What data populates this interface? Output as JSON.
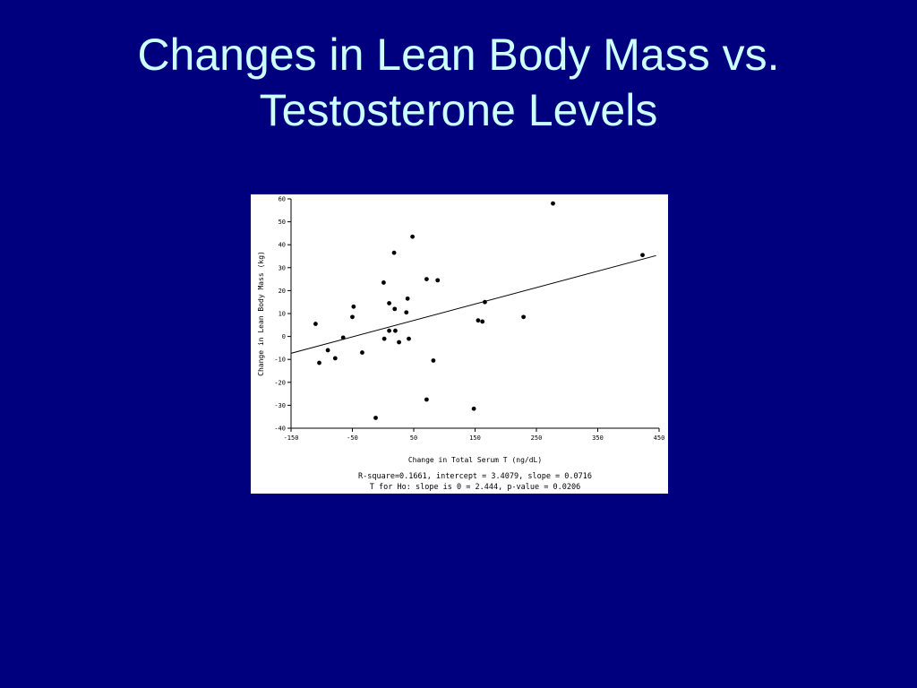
{
  "slide": {
    "title_line1": "Changes in Lean Body Mass vs.",
    "title_line2": "Testosterone Levels"
  },
  "colors": {
    "background": "#00007f",
    "title": "#ccffff",
    "plot_background": "#ffffff",
    "marks": "#000000"
  },
  "chart_data": {
    "type": "scatter",
    "title": "",
    "xlabel": "Change in Total Serum T (ng/dL)",
    "ylabel": "Change in Lean Body Mass (kg)",
    "xlim": [
      -150,
      450
    ],
    "ylim": [
      -40,
      60
    ],
    "xticks": [
      -150,
      -50,
      50,
      150,
      250,
      350,
      450
    ],
    "yticks": [
      -40,
      -30,
      -20,
      -10,
      0,
      10,
      20,
      30,
      40,
      50,
      60
    ],
    "grid": false,
    "legend": "none",
    "series": [
      {
        "points": [
          {
            "x": -110,
            "y": 5.5
          },
          {
            "x": -104,
            "y": -11.5
          },
          {
            "x": -90,
            "y": -6
          },
          {
            "x": -78,
            "y": -9.5
          },
          {
            "x": -65,
            "y": -0.5
          },
          {
            "x": -50,
            "y": 8.5
          },
          {
            "x": -48,
            "y": 13
          },
          {
            "x": -34,
            "y": -7
          },
          {
            "x": -12,
            "y": -35.5
          },
          {
            "x": 1,
            "y": 23.5
          },
          {
            "x": 2,
            "y": -1
          },
          {
            "x": 10,
            "y": 14.5
          },
          {
            "x": 10,
            "y": 2.5
          },
          {
            "x": 18,
            "y": 36.5
          },
          {
            "x": 19,
            "y": 12
          },
          {
            "x": 20,
            "y": 2.5
          },
          {
            "x": 26,
            "y": -2.5
          },
          {
            "x": 38,
            "y": 10.5
          },
          {
            "x": 40,
            "y": 16.5
          },
          {
            "x": 42,
            "y": -1
          },
          {
            "x": 48,
            "y": 43.5
          },
          {
            "x": 71,
            "y": -27.5
          },
          {
            "x": 71,
            "y": 25
          },
          {
            "x": 82,
            "y": -10.5
          },
          {
            "x": 89,
            "y": 24.5
          },
          {
            "x": 148,
            "y": -31.5
          },
          {
            "x": 155,
            "y": 7
          },
          {
            "x": 162,
            "y": 6.5
          },
          {
            "x": 166,
            "y": 15
          },
          {
            "x": 229,
            "y": 8.5
          },
          {
            "x": 277,
            "y": 58
          },
          {
            "x": 423,
            "y": 35.5
          }
        ]
      }
    ],
    "regression": {
      "intercept": 3.4079,
      "slope": 0.0716,
      "x_range": [
        -150,
        445
      ]
    },
    "annotations": [
      "R-square=0.1661, intercept = 3.4079, slope = 0.0716",
      "T for Ho: slope is 0 = 2.444, p-value = 0.0206"
    ]
  }
}
